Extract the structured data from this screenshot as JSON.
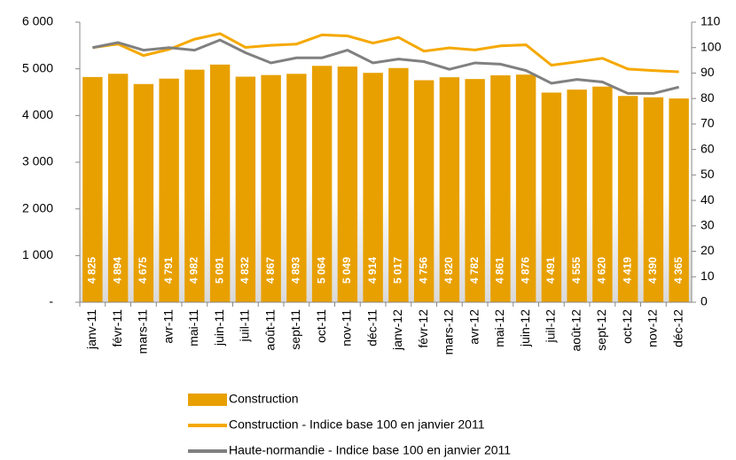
{
  "chart_data": {
    "type": "bar",
    "categories": [
      "janv-11",
      "févr-11",
      "mars-11",
      "avr-11",
      "mai-11",
      "juin-11",
      "juil-11",
      "août-11",
      "sept-11",
      "oct-11",
      "nov-11",
      "déc-11",
      "janv-12",
      "févr-12",
      "mars-12",
      "avr-12",
      "mai-12",
      "juin-12",
      "juil-12",
      "août-12",
      "sept-12",
      "oct-12",
      "nov-12",
      "déc-12"
    ],
    "series": [
      {
        "name": "Construction",
        "color": "#E8A000",
        "values": [
          4825,
          4894,
          4675,
          4791,
          4982,
          5091,
          4832,
          4867,
          4893,
          5064,
          5049,
          4914,
          5017,
          4756,
          4820,
          4782,
          4861,
          4876,
          4491,
          4555,
          4620,
          4419,
          4390,
          4365
        ],
        "value_labels": [
          "4 825",
          "4 894",
          "4 675",
          "4 791",
          "4 982",
          "5 091",
          "4 832",
          "4 867",
          "4 893",
          "5 064",
          "5 049",
          "4 914",
          "5 017",
          "4 756",
          "4 820",
          "4 782",
          "4 861",
          "4 876",
          "4 491",
          "4 555",
          "4 620",
          "4 419",
          "4 390",
          "4 365"
        ]
      },
      {
        "name": "Construction - Indice base 100 en janvier 2011",
        "color": "#F5A800",
        "axis": "y2",
        "values": [
          100,
          101.4,
          96.9,
          99.3,
          103.3,
          105.5,
          100.1,
          100.9,
          101.4,
          105,
          104.6,
          101.8,
          104,
          98.6,
          99.9,
          99.1,
          100.7,
          101.1,
          93.1,
          94.4,
          95.8,
          91.6,
          91,
          90.5
        ]
      },
      {
        "name": "Haute-normandie - Indice base 100 en janvier 2011",
        "color": "#808080",
        "axis": "y2",
        "values": [
          100,
          102,
          99,
          100,
          99,
          103,
          98,
          94,
          96,
          96,
          99,
          94,
          95.5,
          94.5,
          91.5,
          94,
          93.5,
          91,
          86,
          87.5,
          86.5,
          82,
          82,
          84.5
        ]
      }
    ],
    "ylim": [
      0,
      6000
    ],
    "yticks": [
      {
        "value": 0,
        "label": "-"
      },
      {
        "value": 1000,
        "label": "1 000"
      },
      {
        "value": 2000,
        "label": "2 000"
      },
      {
        "value": 3000,
        "label": "3 000"
      },
      {
        "value": 4000,
        "label": "4 000"
      },
      {
        "value": 5000,
        "label": "5 000"
      },
      {
        "value": 6000,
        "label": "6 000"
      }
    ],
    "y2lim": [
      0,
      110
    ],
    "y2ticks": [
      0,
      10,
      20,
      30,
      40,
      50,
      60,
      70,
      80,
      90,
      100,
      110
    ]
  }
}
